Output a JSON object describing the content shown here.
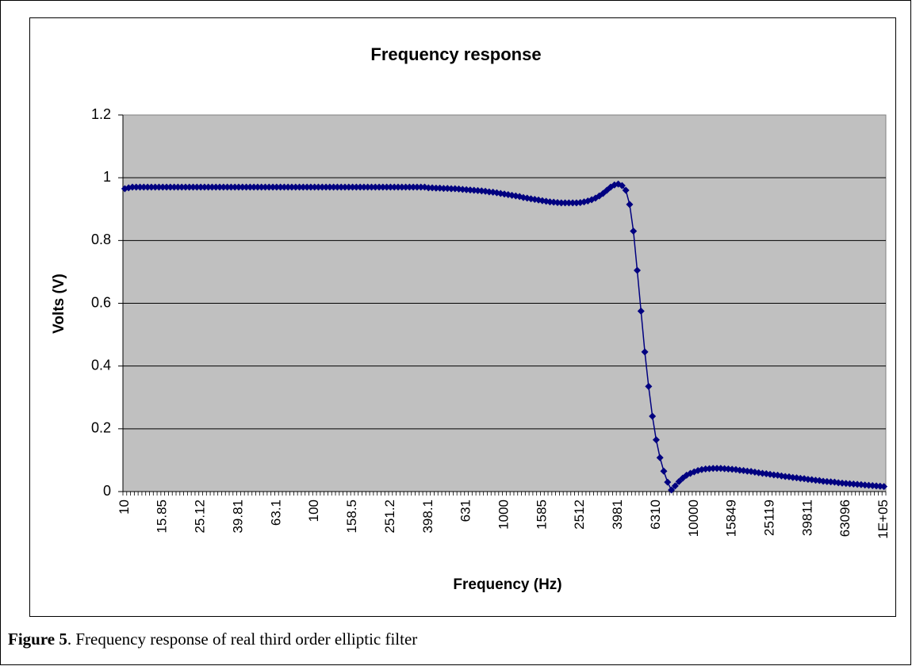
{
  "chart_data": {
    "type": "line",
    "title": "Frequency response",
    "x_label": "Frequency (Hz)",
    "y_label": "Volts (V)",
    "caption_label": "Figure 5",
    "caption_text": ". Frequency response of real third order elliptic filter",
    "color": "#000080",
    "ylim": [
      0,
      1.2
    ],
    "yticks": [
      0,
      0.2,
      0.4,
      0.6,
      0.8,
      1,
      1.2
    ],
    "grid": true,
    "categories": [
      "10",
      null,
      null,
      null,
      null,
      null,
      null,
      null,
      null,
      null,
      "15.85",
      null,
      null,
      null,
      null,
      null,
      null,
      null,
      null,
      null,
      "25.12",
      null,
      null,
      null,
      null,
      null,
      null,
      null,
      null,
      null,
      "39.81",
      null,
      null,
      null,
      null,
      null,
      null,
      null,
      null,
      null,
      "63.1",
      null,
      null,
      null,
      null,
      null,
      null,
      null,
      null,
      null,
      "100",
      null,
      null,
      null,
      null,
      null,
      null,
      null,
      null,
      null,
      "158.5",
      null,
      null,
      null,
      null,
      null,
      null,
      null,
      null,
      null,
      "251.2",
      null,
      null,
      null,
      null,
      null,
      null,
      null,
      null,
      null,
      "398.1",
      null,
      null,
      null,
      null,
      null,
      null,
      null,
      null,
      null,
      "631",
      null,
      null,
      null,
      null,
      null,
      null,
      null,
      null,
      null,
      "1000",
      null,
      null,
      null,
      null,
      null,
      null,
      null,
      null,
      null,
      "1585",
      null,
      null,
      null,
      null,
      null,
      null,
      null,
      null,
      null,
      "2512",
      null,
      null,
      null,
      null,
      null,
      null,
      null,
      null,
      null,
      "3981",
      null,
      null,
      null,
      null,
      null,
      null,
      null,
      null,
      null,
      "6310",
      null,
      null,
      null,
      null,
      null,
      null,
      null,
      null,
      null,
      "10000",
      null,
      null,
      null,
      null,
      null,
      null,
      null,
      null,
      null,
      "15849",
      null,
      null,
      null,
      null,
      null,
      null,
      null,
      null,
      null,
      "25119",
      null,
      null,
      null,
      null,
      null,
      null,
      null,
      null,
      null,
      "39811",
      null,
      null,
      null,
      null,
      null,
      null,
      null,
      null,
      null,
      "63096",
      null,
      null,
      null,
      null,
      null,
      null,
      null,
      null,
      null,
      "1E+05"
    ],
    "values": [
      0.965,
      0.968,
      0.97,
      0.97,
      0.97,
      0.97,
      0.97,
      0.97,
      0.97,
      0.97,
      0.97,
      0.97,
      0.97,
      0.97,
      0.97,
      0.97,
      0.97,
      0.97,
      0.97,
      0.97,
      0.97,
      0.97,
      0.97,
      0.97,
      0.97,
      0.97,
      0.97,
      0.97,
      0.97,
      0.97,
      0.97,
      0.97,
      0.97,
      0.97,
      0.97,
      0.97,
      0.97,
      0.97,
      0.97,
      0.97,
      0.97,
      0.97,
      0.97,
      0.97,
      0.97,
      0.97,
      0.97,
      0.97,
      0.97,
      0.97,
      0.97,
      0.97,
      0.97,
      0.97,
      0.97,
      0.97,
      0.97,
      0.97,
      0.97,
      0.97,
      0.97,
      0.97,
      0.97,
      0.97,
      0.97,
      0.97,
      0.97,
      0.97,
      0.97,
      0.97,
      0.97,
      0.97,
      0.97,
      0.97,
      0.97,
      0.97,
      0.97,
      0.97,
      0.97,
      0.97,
      0.968,
      0.968,
      0.967,
      0.967,
      0.966,
      0.966,
      0.965,
      0.965,
      0.964,
      0.963,
      0.962,
      0.961,
      0.96,
      0.959,
      0.958,
      0.957,
      0.955,
      0.954,
      0.952,
      0.95,
      0.948,
      0.946,
      0.944,
      0.942,
      0.94,
      0.937,
      0.935,
      0.933,
      0.931,
      0.929,
      0.927,
      0.925,
      0.923,
      0.922,
      0.921,
      0.92,
      0.92,
      0.92,
      0.92,
      0.92,
      0.921,
      0.923,
      0.926,
      0.93,
      0.935,
      0.942,
      0.95,
      0.96,
      0.97,
      0.977,
      0.98,
      0.975,
      0.96,
      0.915,
      0.83,
      0.705,
      0.575,
      0.445,
      0.335,
      0.24,
      0.165,
      0.108,
      0.065,
      0.03,
      0.005,
      0.018,
      0.032,
      0.043,
      0.052,
      0.058,
      0.063,
      0.067,
      0.07,
      0.072,
      0.073,
      0.074,
      0.074,
      0.074,
      0.073,
      0.072,
      0.071,
      0.07,
      0.068,
      0.067,
      0.065,
      0.064,
      0.062,
      0.06,
      0.058,
      0.057,
      0.055,
      0.053,
      0.052,
      0.05,
      0.048,
      0.047,
      0.045,
      0.044,
      0.042,
      0.041,
      0.039,
      0.038,
      0.036,
      0.035,
      0.033,
      0.032,
      0.031,
      0.03,
      0.028,
      0.027,
      0.026,
      0.025,
      0.024,
      0.023,
      0.022,
      0.021,
      0.02,
      0.019,
      0.018,
      0.017,
      0.016
    ]
  }
}
